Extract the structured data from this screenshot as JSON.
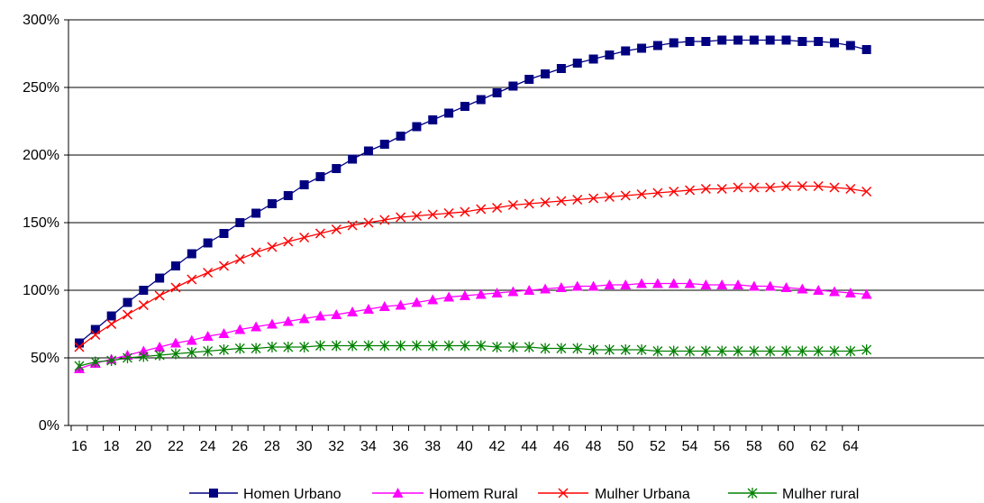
{
  "chart_data": {
    "type": "line",
    "title": "",
    "xlabel": "",
    "ylabel": "",
    "x": [
      16,
      17,
      18,
      19,
      20,
      21,
      22,
      23,
      24,
      25,
      26,
      27,
      28,
      29,
      30,
      31,
      32,
      33,
      34,
      35,
      36,
      37,
      38,
      39,
      40,
      41,
      42,
      43,
      44,
      45,
      46,
      47,
      48,
      49,
      50,
      51,
      52,
      53,
      54,
      55,
      56,
      57,
      58,
      59,
      60,
      61,
      62,
      63,
      64,
      65
    ],
    "x_tick_labels": [
      "16",
      "18",
      "20",
      "22",
      "24",
      "26",
      "28",
      "30",
      "32",
      "34",
      "36",
      "38",
      "40",
      "42",
      "44",
      "46",
      "48",
      "50",
      "52",
      "54",
      "56",
      "58",
      "60",
      "62",
      "64"
    ],
    "y_tick_labels": [
      "0%",
      "50%",
      "100%",
      "150%",
      "200%",
      "250%",
      "300%"
    ],
    "ylim": [
      0,
      300
    ],
    "y_unit": "%",
    "grid": "horizontal",
    "legend_position": "bottom",
    "series": [
      {
        "name": "Homen Urbano",
        "color": "#000080",
        "marker": "square",
        "values": [
          61,
          71,
          81,
          91,
          100,
          109,
          118,
          127,
          135,
          142,
          150,
          157,
          164,
          170,
          178,
          184,
          190,
          197,
          203,
          208,
          214,
          221,
          226,
          231,
          236,
          241,
          246,
          251,
          256,
          260,
          264,
          268,
          271,
          274,
          277,
          279,
          281,
          283,
          284,
          284,
          285,
          285,
          285,
          285,
          285,
          284,
          284,
          283,
          281,
          278
        ]
      },
      {
        "name": "Homem Rural",
        "color": "#FF00FF",
        "marker": "triangle",
        "values": [
          42,
          46,
          49,
          52,
          55,
          58,
          61,
          63,
          66,
          68,
          71,
          73,
          75,
          77,
          79,
          81,
          82,
          84,
          86,
          88,
          89,
          91,
          93,
          95,
          96,
          97,
          98,
          99,
          100,
          101,
          102,
          103,
          103,
          104,
          104,
          105,
          105,
          105,
          105,
          104,
          104,
          104,
          103,
          103,
          102,
          101,
          100,
          99,
          98,
          97
        ]
      },
      {
        "name": "Mulher Urbana",
        "color": "#FF0000",
        "marker": "x",
        "values": [
          58,
          67,
          75,
          82,
          89,
          96,
          102,
          108,
          113,
          118,
          123,
          128,
          132,
          136,
          139,
          142,
          145,
          148,
          150,
          152,
          154,
          155,
          156,
          157,
          158,
          160,
          161,
          163,
          164,
          165,
          166,
          167,
          168,
          169,
          170,
          171,
          172,
          173,
          174,
          175,
          175,
          176,
          176,
          176,
          177,
          177,
          177,
          176,
          175,
          173
        ]
      },
      {
        "name": "Mulher rural",
        "color": "#008000",
        "marker": "star",
        "values": [
          44,
          47,
          48,
          50,
          51,
          52,
          53,
          54,
          55,
          56,
          57,
          57,
          58,
          58,
          58,
          59,
          59,
          59,
          59,
          59,
          59,
          59,
          59,
          59,
          59,
          59,
          58,
          58,
          58,
          57,
          57,
          57,
          56,
          56,
          56,
          56,
          55,
          55,
          55,
          55,
          55,
          55,
          55,
          55,
          55,
          55,
          55,
          55,
          55,
          56
        ]
      }
    ]
  }
}
